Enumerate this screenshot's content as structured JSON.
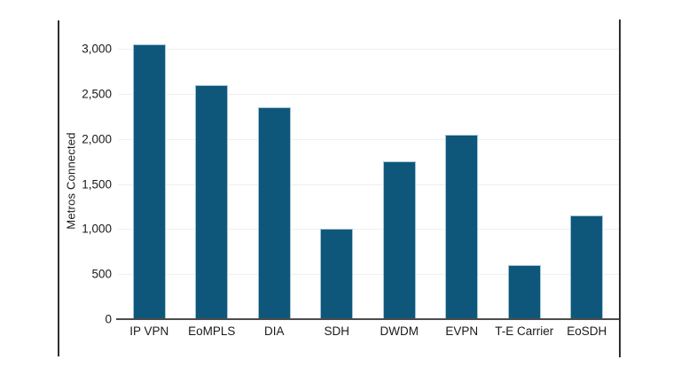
{
  "chart_data": {
    "type": "bar",
    "title": "",
    "xlabel": "",
    "ylabel": "Metros Connected",
    "categories": [
      "IP VPN",
      "EoMPLS",
      "DIA",
      "SDH",
      "DWDM",
      "EVPN",
      "T-E Carrier",
      "EoSDH"
    ],
    "values": [
      3050,
      2600,
      2350,
      1000,
      1750,
      2050,
      600,
      1150
    ],
    "ylim": [
      0,
      3200
    ],
    "yticks": [
      0,
      500,
      1000,
      1500,
      2000,
      2500,
      3000
    ],
    "ytick_labels": [
      "0",
      "500",
      "1,000",
      "1,500",
      "2,000",
      "2,500",
      "3,000"
    ],
    "grid": true,
    "legend": false,
    "colors": {
      "bar_fill": "#0f567b",
      "bar_stroke": "#a3c6d6",
      "gridline": "#efefef",
      "axis_line": "#4d4d4d",
      "text": "#1a1a1a",
      "frame_border": "#2f2f2f",
      "background": "#ffffff"
    }
  }
}
